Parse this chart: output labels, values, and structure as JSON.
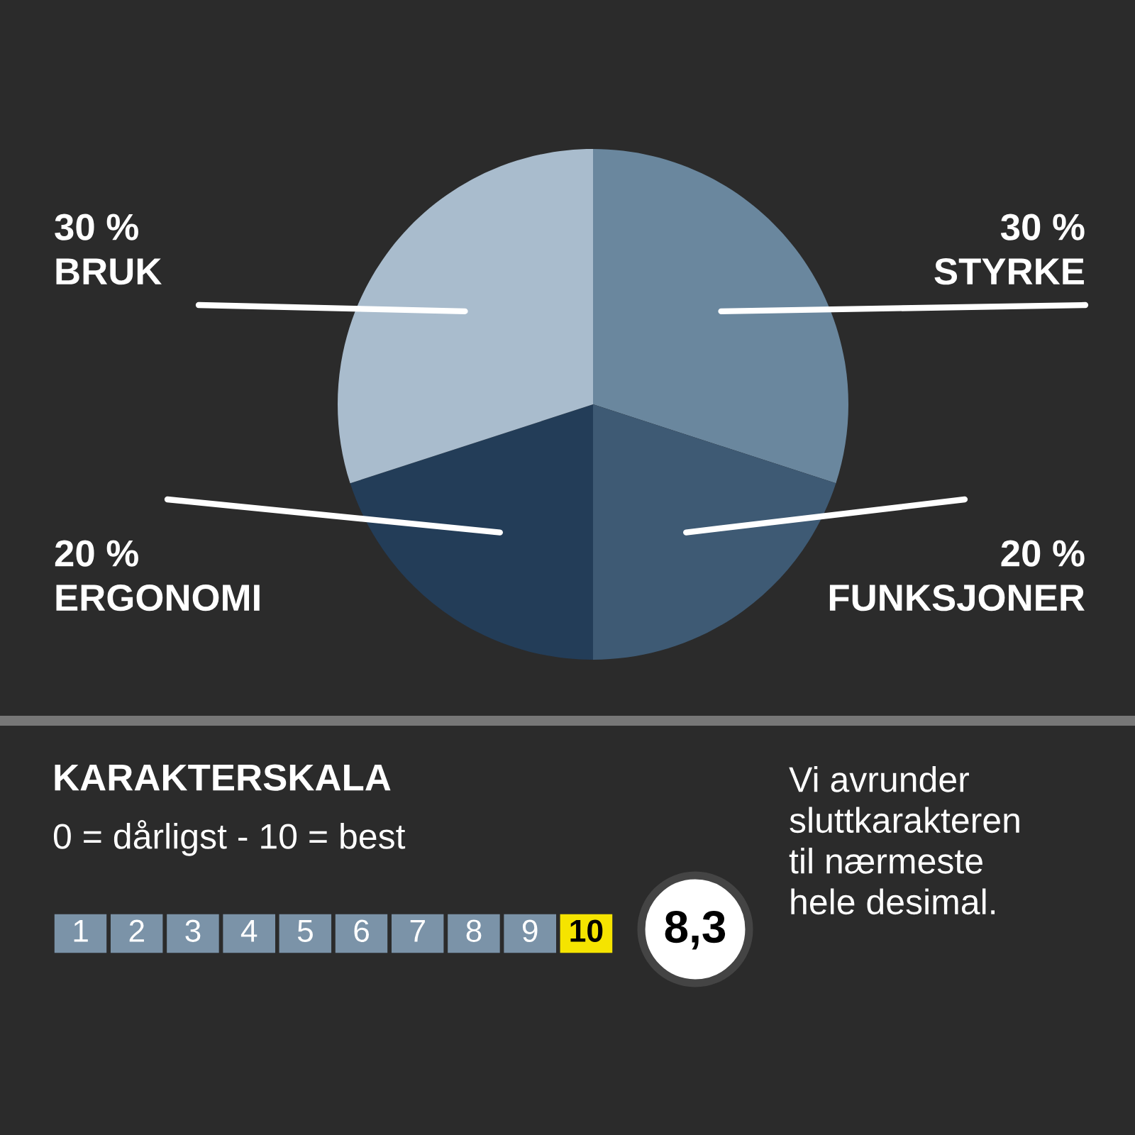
{
  "chart_data": [
    {
      "type": "pie",
      "categories": [
        "STYRKE",
        "FUNKSJONER",
        "ERGONOMI",
        "BRUK"
      ],
      "values": [
        30,
        20,
        20,
        30
      ],
      "value_labels": [
        "30 %",
        "20 %",
        "20 %",
        "30 %"
      ],
      "colors": [
        "#6a879e",
        "#3e5a74",
        "#233d58",
        "#a9bccd"
      ]
    },
    {
      "type": "other",
      "title": "KARAKTERSKALA",
      "subtitle": "0 = dårligst - 10 = best",
      "annotations": [
        "8,3",
        "Vi avrunder\nsluttkarakteren\ntil nærmeste\nhele desimal."
      ]
    },
    {
      "type": "heatmap",
      "categories": [
        null,
        null,
        null,
        null,
        null,
        null,
        null,
        null,
        null,
        null
      ],
      "y_categories": [
        null
      ],
      "cells": [
        [
          1,
          2,
          3,
          4,
          5,
          6,
          7,
          8,
          9,
          10
        ]
      ],
      "cell_labels": [
        [
          "1",
          "2",
          "3",
          "4",
          "5",
          "6",
          "7",
          "8",
          "9",
          "10"
        ]
      ],
      "colors": [
        "#7b93a8",
        "#7b93a8",
        "#7b93a8",
        "#7b93a8",
        "#7b93a8",
        "#7b93a8",
        "#7b93a8",
        "#7b93a8",
        "#7b93a8",
        "#f5e400"
      ]
    }
  ]
}
